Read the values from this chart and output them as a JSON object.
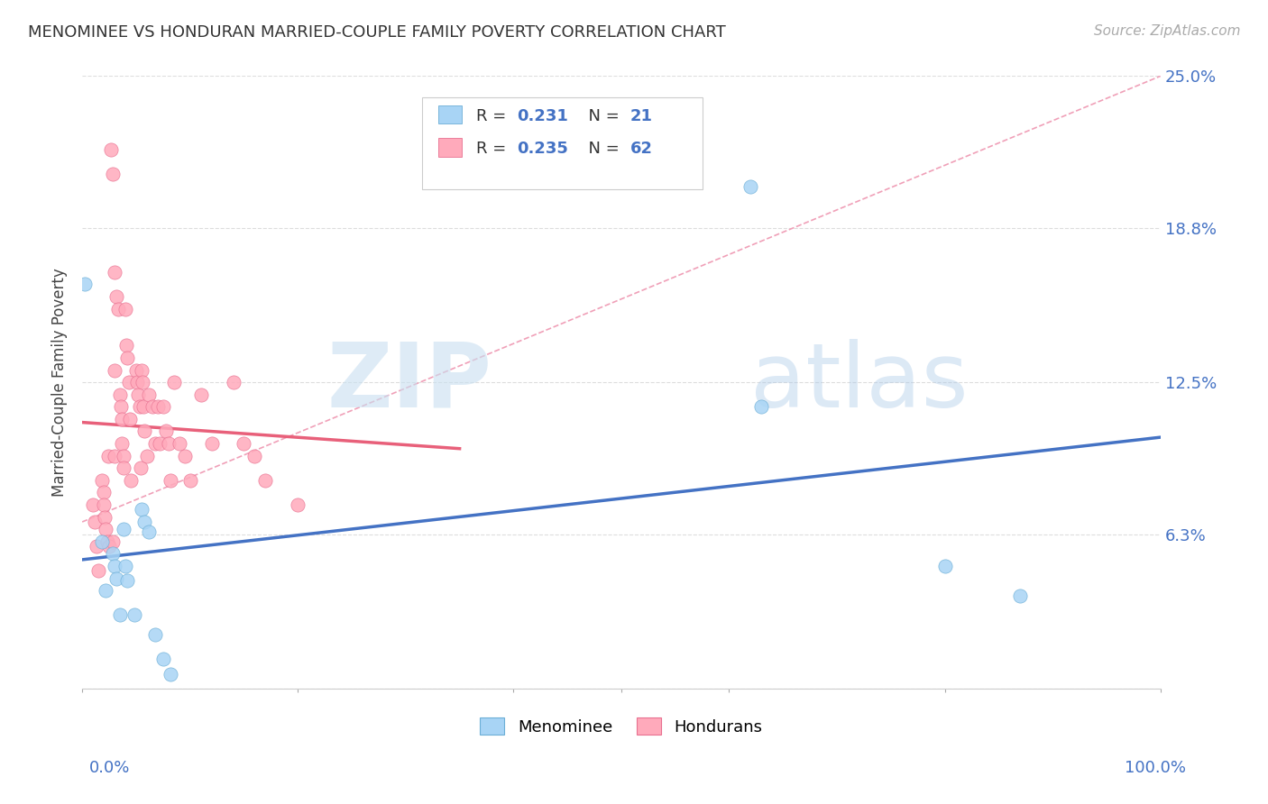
{
  "title": "MENOMINEE VS HONDURAN MARRIED-COUPLE FAMILY POVERTY CORRELATION CHART",
  "source": "Source: ZipAtlas.com",
  "ylabel": "Married-Couple Family Poverty",
  "yticks": [
    0.0,
    0.063,
    0.125,
    0.188,
    0.25
  ],
  "ytick_labels": [
    "",
    "6.3%",
    "12.5%",
    "18.8%",
    "25.0%"
  ],
  "xlim": [
    0.0,
    1.0
  ],
  "ylim": [
    0.0,
    0.25
  ],
  "watermark_zip": "ZIP",
  "watermark_atlas": "atlas",
  "legend_label1": "Menominee",
  "legend_label2": "Hondurans",
  "menominee_scatter_color": "#A8D4F5",
  "menominee_edge_color": "#6BAED6",
  "honduran_scatter_color": "#FFAABB",
  "honduran_edge_color": "#E87090",
  "menominee_line_color": "#4472C4",
  "honduran_line_color": "#E8607A",
  "dashed_line_color": "#F0A0B8",
  "right_axis_color": "#4472C4",
  "background_color": "#FFFFFF",
  "grid_color": "#DDDDDD",
  "grid_style": "--",
  "menominee_x": [
    0.002,
    0.018,
    0.022,
    0.028,
    0.03,
    0.032,
    0.035,
    0.038,
    0.04,
    0.042,
    0.048,
    0.055,
    0.058,
    0.062,
    0.068,
    0.075,
    0.082,
    0.62,
    0.63,
    0.8,
    0.87
  ],
  "menominee_y": [
    0.165,
    0.06,
    0.04,
    0.055,
    0.05,
    0.045,
    0.03,
    0.065,
    0.05,
    0.044,
    0.03,
    0.073,
    0.068,
    0.064,
    0.022,
    0.012,
    0.006,
    0.205,
    0.115,
    0.05,
    0.038
  ],
  "honduran_x": [
    0.01,
    0.012,
    0.013,
    0.015,
    0.018,
    0.02,
    0.02,
    0.021,
    0.022,
    0.023,
    0.024,
    0.025,
    0.027,
    0.028,
    0.028,
    0.03,
    0.03,
    0.03,
    0.032,
    0.033,
    0.035,
    0.036,
    0.037,
    0.037,
    0.038,
    0.038,
    0.04,
    0.041,
    0.042,
    0.043,
    0.044,
    0.045,
    0.05,
    0.051,
    0.052,
    0.053,
    0.054,
    0.055,
    0.056,
    0.057,
    0.058,
    0.06,
    0.062,
    0.065,
    0.068,
    0.07,
    0.072,
    0.075,
    0.078,
    0.08,
    0.082,
    0.085,
    0.09,
    0.095,
    0.1,
    0.11,
    0.12,
    0.14,
    0.15,
    0.16,
    0.17,
    0.2
  ],
  "honduran_y": [
    0.075,
    0.068,
    0.058,
    0.048,
    0.085,
    0.08,
    0.075,
    0.07,
    0.065,
    0.06,
    0.095,
    0.058,
    0.22,
    0.21,
    0.06,
    0.17,
    0.13,
    0.095,
    0.16,
    0.155,
    0.12,
    0.115,
    0.11,
    0.1,
    0.095,
    0.09,
    0.155,
    0.14,
    0.135,
    0.125,
    0.11,
    0.085,
    0.13,
    0.125,
    0.12,
    0.115,
    0.09,
    0.13,
    0.125,
    0.115,
    0.105,
    0.095,
    0.12,
    0.115,
    0.1,
    0.115,
    0.1,
    0.115,
    0.105,
    0.1,
    0.085,
    0.125,
    0.1,
    0.095,
    0.085,
    0.12,
    0.1,
    0.125,
    0.1,
    0.095,
    0.085,
    0.075
  ]
}
